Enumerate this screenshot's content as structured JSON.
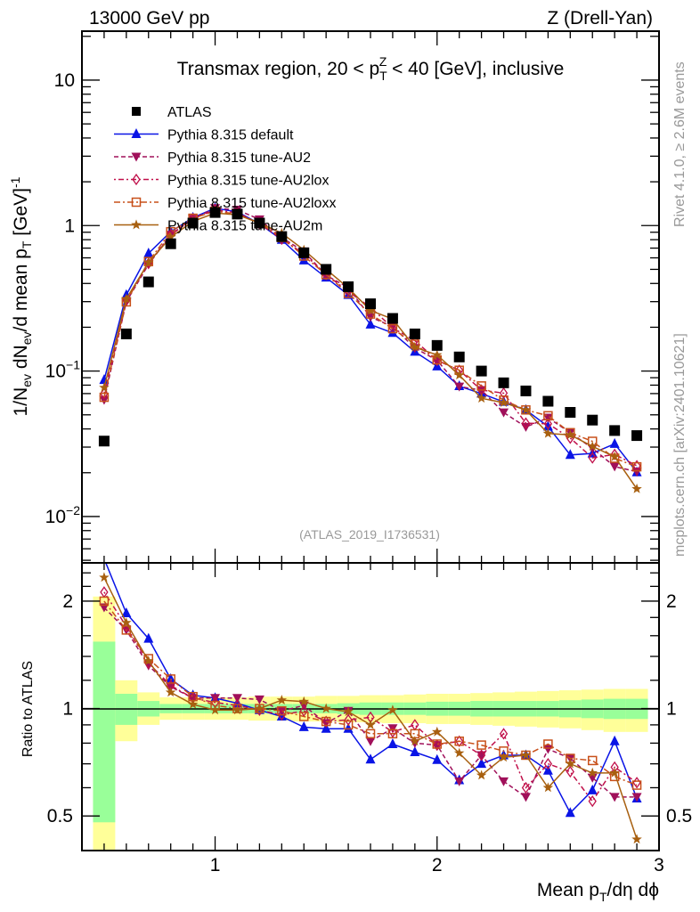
{
  "header": {
    "left": "13000 GeV pp",
    "right": "Z (Drell-Yan)"
  },
  "side_labels": {
    "rivet": "Rivet 4.1.0, ≥ 2.6M events",
    "mcplots": "mcplots.cern.ch [arXiv:2401.10621]"
  },
  "chart_data": {
    "type": "scatter",
    "title": {
      "pre": "Transmax region, 20 < p",
      "sub": "T",
      "sup": "Z",
      "post": " < 40 [GeV], inclusive"
    },
    "reference": "(ATLAS_2019_I1736531)",
    "xlabel": {
      "pre": "Mean p",
      "sub": "T",
      "post": "/dη dϕ"
    },
    "ylabel": {
      "pre": "1/N",
      "sub1": "ev",
      "mid1": " dN",
      "sub2": "ev",
      "mid2": "/d mean p",
      "sub3": "T",
      "mid3": " [GeV]",
      "sup": "-1"
    },
    "ratio_ylabel": "Ratio to ATLAS",
    "xlim": [
      0.4,
      3.0
    ],
    "ylim": [
      0.0048,
      21.7
    ],
    "yscale": "log",
    "ratio_ylim": [
      0.4,
      2.56
    ],
    "ratio_yscale": "log",
    "x_ticks": [
      "1",
      "2",
      "3"
    ],
    "y_ticks": [
      {
        "v": 10,
        "base": "10",
        "exp": ""
      },
      {
        "v": 1,
        "base": "1",
        "exp": ""
      },
      {
        "v": 0.1,
        "base": "10",
        "exp": "−1"
      },
      {
        "v": 0.01,
        "base": "10",
        "exp": "−2"
      }
    ],
    "ratio_ticks": [
      "2",
      "1",
      "0.5"
    ],
    "legend_position": "top-left",
    "x": [
      0.5,
      0.6,
      0.7,
      0.8,
      0.9,
      1.0,
      1.1,
      1.2,
      1.3,
      1.4,
      1.5,
      1.6,
      1.7,
      1.8,
      1.9,
      2.0,
      2.1,
      2.2,
      2.3,
      2.4,
      2.5,
      2.6,
      2.7,
      2.8,
      2.9
    ],
    "data": {
      "name": "ATLAS",
      "values": [
        0.033,
        0.18,
        0.41,
        0.75,
        1.04,
        1.23,
        1.2,
        1.04,
        0.84,
        0.65,
        0.5,
        0.38,
        0.29,
        0.23,
        0.18,
        0.15,
        0.125,
        0.1,
        0.083,
        0.073,
        0.062,
        0.052,
        0.046,
        0.039,
        0.036
      ],
      "band_inner_lo": [
        0.48,
        0.9,
        0.95,
        0.97,
        0.97,
        0.97,
        0.97,
        0.97,
        0.97,
        0.97,
        0.97,
        0.965,
        0.96,
        0.96,
        0.96,
        0.955,
        0.955,
        0.95,
        0.95,
        0.95,
        0.95,
        0.945,
        0.94,
        0.935,
        0.935
      ],
      "band_inner_hi": [
        1.54,
        1.1,
        1.05,
        1.03,
        1.03,
        1.03,
        1.03,
        1.03,
        1.03,
        1.03,
        1.03,
        1.035,
        1.04,
        1.04,
        1.04,
        1.045,
        1.045,
        1.05,
        1.05,
        1.05,
        1.05,
        1.055,
        1.06,
        1.065,
        1.065
      ],
      "band_outer_lo": [
        0.35,
        0.81,
        0.9,
        0.93,
        0.93,
        0.93,
        0.93,
        0.925,
        0.925,
        0.92,
        0.92,
        0.915,
        0.915,
        0.91,
        0.91,
        0.905,
        0.905,
        0.9,
        0.895,
        0.89,
        0.885,
        0.88,
        0.87,
        0.86,
        0.86
      ],
      "band_outer_hi": [
        2.06,
        1.2,
        1.11,
        1.075,
        1.075,
        1.075,
        1.075,
        1.08,
        1.08,
        1.08,
        1.085,
        1.085,
        1.09,
        1.09,
        1.095,
        1.1,
        1.1,
        1.105,
        1.11,
        1.115,
        1.12,
        1.125,
        1.13,
        1.135,
        1.135
      ],
      "color": "#000000"
    },
    "series": [
      {
        "name": "Pythia 8.315 default",
        "color": "#0a14e6",
        "marker": "triangle-up",
        "dash": "",
        "ratio": [
          2.63,
          1.85,
          1.57,
          1.21,
          1.09,
          1.07,
          1.035,
          0.99,
          0.95,
          0.887,
          0.878,
          0.878,
          0.72,
          0.795,
          0.755,
          0.718,
          0.63,
          0.7,
          0.74,
          0.74,
          0.67,
          0.51,
          0.59,
          0.81,
          0.56
        ]
      },
      {
        "name": "Pythia 8.315 tune-AU2",
        "color": "#a0105a",
        "marker": "triangle-down",
        "dash": "5,3",
        "ratio": [
          1.92,
          1.66,
          1.32,
          1.15,
          1.07,
          1.07,
          1.07,
          1.06,
          0.985,
          1.02,
          0.91,
          0.985,
          0.81,
          0.88,
          0.8,
          0.79,
          0.625,
          0.74,
          0.625,
          0.565,
          0.77,
          0.725,
          0.64,
          0.565,
          0.565
        ]
      },
      {
        "name": "Pythia 8.315 tune-AU2lox",
        "color": "#c0104a",
        "marker": "diamond-open",
        "dash": "2,3,6,3",
        "ratio": [
          2.12,
          1.7,
          1.34,
          1.16,
          1.07,
          1.04,
          1.02,
          0.99,
          0.96,
          0.985,
          0.92,
          0.93,
          0.945,
          0.86,
          0.9,
          0.79,
          0.81,
          0.74,
          0.85,
          0.6,
          0.7,
          0.665,
          0.55,
          0.685,
          0.62
        ]
      },
      {
        "name": "Pythia 8.315 tune-AU2loxx",
        "color": "#c8501a",
        "marker": "square-open",
        "dash": "7,3,2,3",
        "ratio": [
          2.0,
          1.66,
          1.38,
          1.21,
          1.08,
          1.02,
          1.0,
          1.0,
          0.985,
          0.95,
          0.92,
          0.9,
          0.85,
          0.85,
          0.85,
          0.795,
          0.81,
          0.79,
          0.76,
          0.74,
          0.795,
          0.725,
          0.715,
          0.645,
          0.61
        ]
      },
      {
        "name": "Pythia 8.315 tune-AU2m",
        "color": "#a86010",
        "marker": "star",
        "dash": "",
        "ratio": [
          2.33,
          1.74,
          1.36,
          1.11,
          1.027,
          0.99,
          0.99,
          1.0,
          1.056,
          1.046,
          1.0,
          0.98,
          0.9,
          0.99,
          0.81,
          0.86,
          0.75,
          0.65,
          0.73,
          0.74,
          0.6,
          0.7,
          0.66,
          0.66,
          0.43
        ]
      }
    ]
  }
}
